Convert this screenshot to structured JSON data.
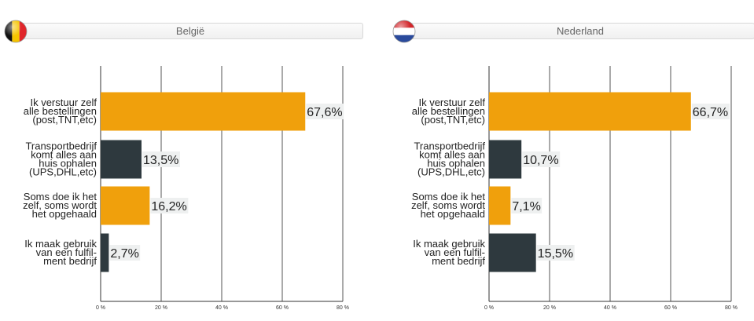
{
  "colors": {
    "orange": "#f0a00c",
    "dark": "#2e393e",
    "grid": "#555555",
    "label_bg": "#eef0f0"
  },
  "panels": [
    {
      "title": "België",
      "flag_icon": "belgium-flag-icon",
      "chart_data": {
        "type": "bar",
        "orientation": "horizontal",
        "categories": [
          [
            "Ik verstuur zelf",
            "alle bestellingen",
            "(post,TNT,etc)"
          ],
          [
            "Transportbedrijf",
            "komt alles aan",
            "huis ophalen",
            "(UPS,DHL,etc)"
          ],
          [
            "Soms doe ik het",
            "zelf, soms wordt",
            "het opgehaald"
          ],
          [
            "Ik maak gebruik",
            "van een fulfil-",
            "ment bedrijf"
          ]
        ],
        "values": [
          67.6,
          13.5,
          16.2,
          2.7
        ],
        "value_labels": [
          "67,6%",
          "13,5%",
          "16,2%",
          "2,7%"
        ],
        "bar_colors": [
          "orange",
          "dark",
          "orange",
          "dark"
        ],
        "xlim": [
          0,
          80
        ],
        "ticks": [
          0,
          20,
          40,
          60,
          80
        ],
        "tick_labels": [
          "0 %",
          "20 %",
          "40 %",
          "60 %",
          "80 %"
        ],
        "grid": true
      }
    },
    {
      "title": "Nederland",
      "flag_icon": "netherlands-flag-icon",
      "chart_data": {
        "type": "bar",
        "orientation": "horizontal",
        "categories": [
          [
            "Ik verstuur zelf",
            "alle bestellingen",
            "(post,TNT,etc)"
          ],
          [
            "Transportbedrijf",
            "komt alles aan",
            "huis ophalen",
            "(UPS,DHL,etc)"
          ],
          [
            "Soms doe ik het",
            "zelf, soms wordt",
            "het opgehaald"
          ],
          [
            "Ik maak gebruik",
            "van een fulfil-",
            "ment bedrijf"
          ]
        ],
        "values": [
          66.7,
          10.7,
          7.1,
          15.5
        ],
        "value_labels": [
          "66,7%",
          "10,7%",
          "7,1%",
          "15,5%"
        ],
        "bar_colors": [
          "orange",
          "dark",
          "orange",
          "dark"
        ],
        "xlim": [
          0,
          80
        ],
        "ticks": [
          0,
          20,
          40,
          60,
          80
        ],
        "tick_labels": [
          "0 %",
          "20 %",
          "40 %",
          "60 %",
          "80 %"
        ],
        "grid": true
      }
    }
  ]
}
